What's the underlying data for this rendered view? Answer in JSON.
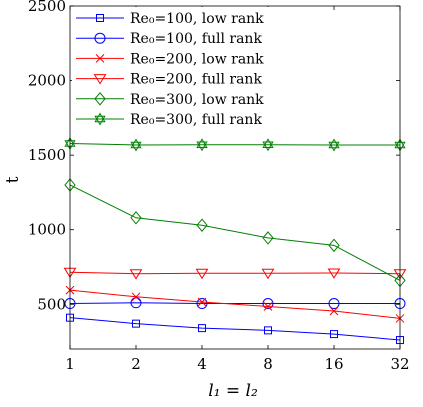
{
  "chart_data": {
    "type": "line",
    "x": [
      1,
      2,
      4,
      8,
      16,
      32
    ],
    "x_tick_labels": [
      "1",
      "2",
      "4",
      "8",
      "16",
      "32"
    ],
    "xlabel": "l₁ = l₂",
    "ylabel": "t",
    "ylim": [
      200,
      2500
    ],
    "y_ticks": [
      500,
      1000,
      1500,
      2000,
      2500
    ],
    "x_scale": "log2",
    "legend_position": "top-left",
    "series": [
      {
        "name": "Re₀=100, low rank",
        "color": "#0000ff",
        "marker": "square",
        "values": [
          410,
          370,
          340,
          325,
          300,
          260
        ]
      },
      {
        "name": "Re₀=100, full rank",
        "color": "#0000ff",
        "marker": "circle",
        "values": [
          505,
          510,
          505,
          505,
          505,
          505
        ]
      },
      {
        "name": "Re₀=200, low rank",
        "color": "#ff0000",
        "marker": "x",
        "values": [
          595,
          550,
          515,
          485,
          455,
          405
        ]
      },
      {
        "name": "Re₀=200, full rank",
        "color": "#ff0000",
        "marker": "triangle-down",
        "values": [
          715,
          705,
          708,
          708,
          710,
          705
        ]
      },
      {
        "name": "Re₀=300, low rank",
        "color": "#008000",
        "marker": "diamond",
        "values": [
          1300,
          1080,
          1030,
          945,
          895,
          660
        ]
      },
      {
        "name": "Re₀=300, full rank",
        "color": "#008000",
        "marker": "hexagram",
        "values": [
          1578,
          1568,
          1570,
          1570,
          1568,
          1568
        ]
      }
    ]
  }
}
